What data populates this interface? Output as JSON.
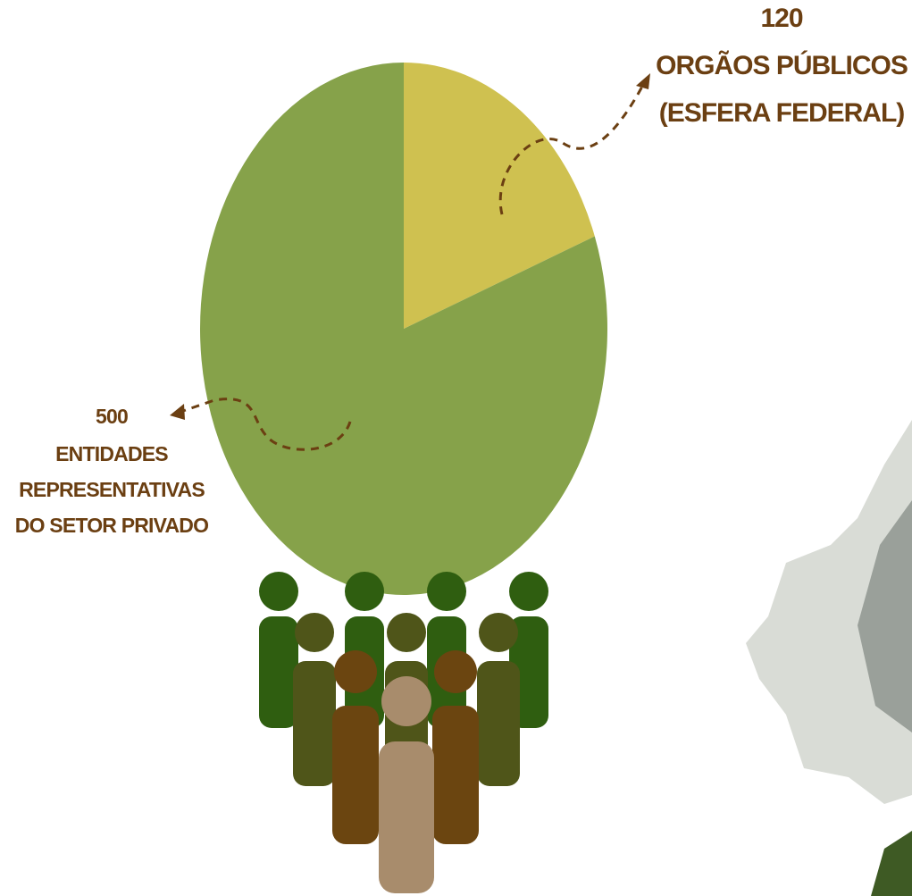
{
  "chart_data": {
    "type": "pie",
    "categories": [
      [
        "ORGÃOS PÚBLICOS",
        "(ESFERA FEDERAL)"
      ],
      [
        "ENTIDADES",
        "REPRESENTATIVAS",
        "DO SETOR PRIVADO"
      ]
    ],
    "values": [
      120,
      500
    ],
    "colors": [
      "#cfc150",
      "#86a24a"
    ]
  }
}
